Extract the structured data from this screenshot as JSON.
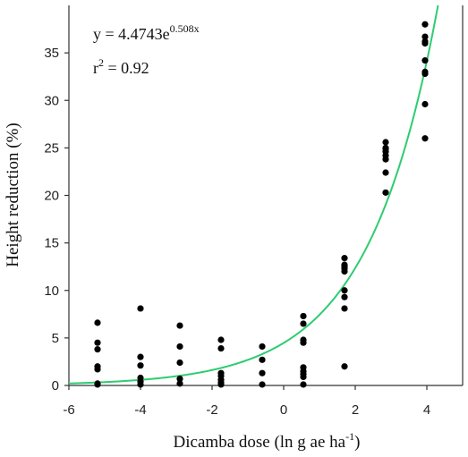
{
  "chart_data": {
    "type": "scatter",
    "title": "",
    "xlabel": "Dicamba dose (ln g ae ha",
    "xlabel_superscript": "-1",
    "xlabel_close": ")",
    "ylabel": "Height reduction (%)",
    "xlim": [
      -6,
      5
    ],
    "ylim": [
      0,
      40
    ],
    "xticks": [
      -6,
      -4,
      -2,
      0,
      2,
      4
    ],
    "yticks": [
      0,
      5,
      10,
      15,
      20,
      25,
      30,
      35
    ],
    "grid": false,
    "legend": "none",
    "annotations": {
      "equation_main": "y = 4.4743e",
      "equation_exponent": "0.508x",
      "r2_label": "r",
      "r2_exponent": "2",
      "r2_value": " = 0.92"
    },
    "fit": {
      "a": 4.4743,
      "b": 0.508,
      "color": "#2ecc71"
    },
    "point_color": "#000000",
    "series": [
      {
        "x": [
          -5.2,
          -5.2,
          -5.2,
          -5.2,
          -5.2,
          -5.2,
          -5.2,
          -4.0,
          -4.0,
          -4.0,
          -4.0,
          -4.0,
          -4.0,
          -2.9,
          -2.9,
          -2.9,
          -2.9,
          -2.9,
          -1.75,
          -1.75,
          -1.75,
          -1.75,
          -1.75,
          -1.75,
          -1.75,
          -0.6,
          -0.6,
          -0.6,
          -0.6,
          0.55,
          0.55,
          0.55,
          0.55,
          0.55,
          0.55,
          0.55,
          0.55,
          0.55,
          1.7,
          1.7,
          1.7,
          1.7,
          1.7,
          1.7,
          1.7,
          1.7,
          1.7,
          2.85,
          2.85,
          2.85,
          2.85,
          2.85,
          2.85,
          2.85,
          2.85,
          3.95,
          3.95,
          3.95,
          3.95,
          3.95,
          3.95,
          3.95,
          3.95,
          3.95
        ],
        "y": [
          6.6,
          4.5,
          3.8,
          2.0,
          1.7,
          0.2,
          0.1,
          8.1,
          3.0,
          2.1,
          0.8,
          0.4,
          0.1,
          6.3,
          4.1,
          2.4,
          0.7,
          0.2,
          4.8,
          3.9,
          1.3,
          1.0,
          0.6,
          0.3,
          0.1,
          4.1,
          2.7,
          1.3,
          0.1,
          7.3,
          6.5,
          4.8,
          4.5,
          1.9,
          1.5,
          1.2,
          0.9,
          0.1,
          13.4,
          12.7,
          12.3,
          12.0,
          10.0,
          9.3,
          8.1,
          2.0,
          12.5,
          25.6,
          25.0,
          24.6,
          24.2,
          23.8,
          22.4,
          20.3,
          24.9,
          38.0,
          36.7,
          36.0,
          34.2,
          33.0,
          32.8,
          29.6,
          26.0,
          36.2
        ]
      }
    ]
  }
}
